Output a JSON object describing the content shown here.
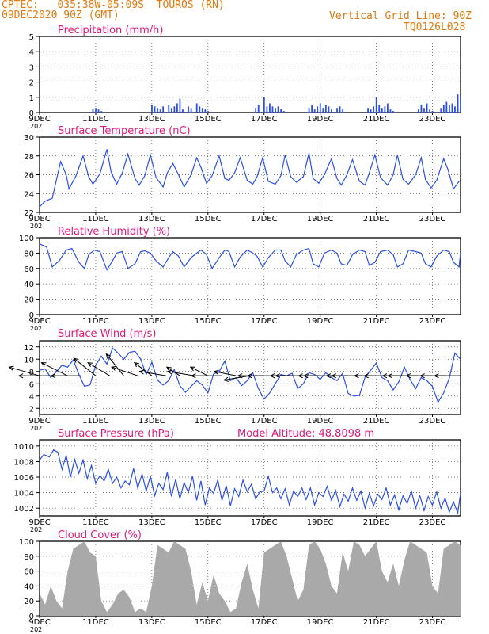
{
  "header": {
    "source": "CPTEC:   035:38W-05:09S  TOUROS (RN)",
    "date": "09DEC2020 90Z (GMT)",
    "grid_line": "Vertical Grid Line: 90Z",
    "model": "TQ0126L028"
  },
  "colors": {
    "header": "#e07a10",
    "title": "#e0197a",
    "line": "#2a4fe8",
    "cloud": "#a9a9a9",
    "arrow": "#000000"
  },
  "x_axis": {
    "tick_labels": [
      "9DEC",
      "11DEC",
      "13DEC",
      "15DEC",
      "17DEC",
      "19DEC",
      "21DEC",
      "23DEC"
    ],
    "year_fragment": "202"
  },
  "chart_data": [
    {
      "type": "bar",
      "title": "Precipitation (mm/h)",
      "ylim": [
        0,
        5
      ],
      "yticks": [
        "0",
        "1",
        "2",
        "3",
        "4",
        "5"
      ],
      "xlim_days": [
        9,
        24
      ],
      "grid": true,
      "x_days": [
        10.9,
        11.0,
        11.1,
        11.2,
        13.0,
        13.1,
        13.2,
        13.3,
        13.4,
        13.6,
        13.7,
        13.8,
        13.9,
        14.0,
        14.1,
        14.3,
        14.4,
        14.6,
        14.7,
        14.8,
        14.9,
        15.0,
        16.7,
        16.8,
        17.0,
        17.1,
        17.2,
        17.3,
        17.4,
        17.5,
        17.6,
        17.7,
        18.6,
        18.7,
        18.8,
        18.9,
        19.0,
        19.1,
        19.2,
        19.3,
        19.4,
        19.6,
        19.7,
        19.8,
        20.7,
        20.8,
        20.9,
        21.0,
        21.1,
        21.2,
        21.3,
        21.4,
        21.5,
        21.6,
        22.5,
        22.6,
        22.7,
        22.8,
        22.9,
        23.0,
        23.3,
        23.4,
        23.5,
        23.6,
        23.7,
        23.8,
        23.9,
        24.0
      ],
      "values": [
        0.2,
        0.3,
        0.2,
        0.1,
        0.5,
        0.4,
        0.3,
        0.2,
        0.4,
        0.5,
        0.3,
        0.4,
        0.6,
        0.9,
        0.2,
        0.4,
        0.3,
        0.6,
        0.4,
        0.3,
        0.2,
        0.1,
        0.3,
        0.5,
        1.0,
        0.4,
        0.6,
        0.4,
        0.3,
        0.4,
        0.2,
        0.1,
        0.3,
        0.5,
        0.2,
        0.4,
        0.6,
        0.3,
        0.5,
        0.4,
        0.2,
        0.3,
        0.4,
        0.2,
        0.3,
        0.2,
        0.4,
        1.0,
        0.5,
        0.3,
        0.4,
        0.6,
        0.2,
        0.1,
        0.2,
        0.5,
        0.3,
        0.6,
        0.2,
        0.1,
        0.3,
        0.5,
        0.7,
        0.5,
        0.6,
        0.4,
        1.2,
        0.9
      ]
    },
    {
      "type": "line",
      "title": "Surface Temperature (nC)",
      "ylim": [
        22,
        30
      ],
      "yticks": [
        "22",
        "24",
        "26",
        "28",
        "30"
      ],
      "xlim_days": [
        9,
        24
      ],
      "grid": true,
      "x_days": [
        9.0,
        9.2,
        9.45,
        9.75,
        9.95,
        10.05,
        10.3,
        10.55,
        10.75,
        10.9,
        11.15,
        11.4,
        11.55,
        11.75,
        11.95,
        12.15,
        12.4,
        12.55,
        12.75,
        12.95,
        13.15,
        13.4,
        13.55,
        13.75,
        13.95,
        14.15,
        14.4,
        14.6,
        14.75,
        14.95,
        15.15,
        15.4,
        15.6,
        15.75,
        15.95,
        16.15,
        16.4,
        16.6,
        16.75,
        16.95,
        17.15,
        17.4,
        17.6,
        17.75,
        17.95,
        18.15,
        18.4,
        18.6,
        18.75,
        18.95,
        19.15,
        19.4,
        19.6,
        19.75,
        19.95,
        20.15,
        20.4,
        20.6,
        20.75,
        20.95,
        21.15,
        21.4,
        21.6,
        21.75,
        21.95,
        22.15,
        22.4,
        22.6,
        22.75,
        22.95,
        23.15,
        23.4,
        23.55,
        23.75,
        23.95,
        24.0
      ],
      "values": [
        22.6,
        23.2,
        23.5,
        27.4,
        26.0,
        24.5,
        25.9,
        28.0,
        25.8,
        25.0,
        26.1,
        28.7,
        26.3,
        25.0,
        26.2,
        28.2,
        25.6,
        24.9,
        25.9,
        28.1,
        25.7,
        24.7,
        26.2,
        27.2,
        26.0,
        24.7,
        26.0,
        27.8,
        26.8,
        25.1,
        25.9,
        28.0,
        25.6,
        25.4,
        26.2,
        27.8,
        25.4,
        25.0,
        25.8,
        27.8,
        25.3,
        25.0,
        25.9,
        28.1,
        25.8,
        25.2,
        25.8,
        28.3,
        25.6,
        25.1,
        26.0,
        27.7,
        25.6,
        24.9,
        26.0,
        27.6,
        25.3,
        24.9,
        26.2,
        28.1,
        25.7,
        24.9,
        26.0,
        28.1,
        25.5,
        25.0,
        26.0,
        27.8,
        25.5,
        24.6,
        25.4,
        27.7,
        26.6,
        24.5,
        25.3,
        25.3
      ]
    },
    {
      "type": "line",
      "title": "Relative Humidity (%)",
      "ylim": [
        0,
        100
      ],
      "yticks": [
        "0",
        "20",
        "40",
        "60",
        "80",
        "100"
      ],
      "xlim_days": [
        9,
        24
      ],
      "grid": true,
      "x_days": [
        9.0,
        9.25,
        9.45,
        9.7,
        9.95,
        10.15,
        10.4,
        10.6,
        10.75,
        10.95,
        11.15,
        11.4,
        11.6,
        11.75,
        11.95,
        12.15,
        12.4,
        12.6,
        12.75,
        12.95,
        13.15,
        13.4,
        13.6,
        13.75,
        13.95,
        14.15,
        14.4,
        14.6,
        14.75,
        14.95,
        15.15,
        15.4,
        15.6,
        15.75,
        15.95,
        16.15,
        16.4,
        16.6,
        16.75,
        16.95,
        17.15,
        17.4,
        17.6,
        17.75,
        17.95,
        18.15,
        18.4,
        18.6,
        18.75,
        18.95,
        19.15,
        19.4,
        19.6,
        19.75,
        19.95,
        20.15,
        20.4,
        20.6,
        20.75,
        20.95,
        21.15,
        21.4,
        21.6,
        21.75,
        21.95,
        22.15,
        22.4,
        22.6,
        22.75,
        22.95,
        23.15,
        23.4,
        23.6,
        23.75,
        23.95,
        24.0
      ],
      "values": [
        92,
        88,
        62,
        70,
        84,
        86,
        68,
        60,
        78,
        84,
        82,
        58,
        70,
        80,
        82,
        60,
        66,
        82,
        83,
        80,
        70,
        62,
        74,
        82,
        76,
        62,
        74,
        80,
        84,
        78,
        60,
        74,
        84,
        82,
        62,
        75,
        84,
        80,
        76,
        62,
        74,
        84,
        84,
        70,
        62,
        78,
        84,
        86,
        66,
        62,
        80,
        84,
        80,
        66,
        64,
        78,
        84,
        82,
        64,
        68,
        82,
        84,
        78,
        62,
        66,
        84,
        82,
        80,
        66,
        62,
        76,
        84,
        82,
        68,
        62,
        80
      ]
    },
    {
      "type": "line",
      "title": "Surface Wind (m/s)",
      "ylim": [
        1,
        13
      ],
      "yticks": [
        "2",
        "4",
        "6",
        "8",
        "10",
        "12"
      ],
      "xlim_days": [
        9,
        24
      ],
      "grid": true,
      "x_days": [
        9.0,
        9.2,
        9.4,
        9.6,
        9.8,
        10.0,
        10.2,
        10.4,
        10.6,
        10.8,
        11.0,
        11.2,
        11.4,
        11.6,
        11.8,
        12.0,
        12.2,
        12.4,
        12.6,
        12.8,
        13.0,
        13.2,
        13.4,
        13.6,
        13.8,
        14.0,
        14.2,
        14.4,
        14.6,
        14.8,
        15.0,
        15.2,
        15.4,
        15.6,
        15.8,
        16.0,
        16.2,
        16.4,
        16.6,
        16.8,
        17.0,
        17.2,
        17.4,
        17.6,
        17.8,
        18.0,
        18.2,
        18.4,
        18.6,
        18.8,
        19.0,
        19.2,
        19.4,
        19.6,
        19.8,
        20.0,
        20.2,
        20.4,
        20.6,
        20.8,
        21.0,
        21.2,
        21.4,
        21.6,
        21.8,
        22.0,
        22.2,
        22.4,
        22.6,
        22.8,
        23.0,
        23.2,
        23.4,
        23.6,
        23.8,
        24.0
      ],
      "values": [
        8.2,
        8.4,
        7.0,
        8.0,
        9.0,
        8.7,
        9.9,
        7.5,
        5.6,
        5.8,
        9.0,
        10.5,
        9.2,
        11.8,
        11.0,
        10.0,
        11.1,
        11.3,
        10.0,
        7.5,
        9.5,
        6.6,
        5.8,
        6.5,
        8.3,
        5.7,
        4.6,
        5.6,
        6.5,
        5.8,
        4.5,
        7.6,
        8.0,
        9.7,
        6.5,
        7.0,
        5.7,
        6.5,
        7.8,
        5.2,
        3.5,
        4.5,
        6.0,
        7.5,
        7.3,
        7.7,
        5.2,
        6.0,
        7.8,
        7.5,
        6.7,
        7.8,
        7.0,
        6.5,
        7.7,
        4.4,
        4.0,
        4.1,
        7.1,
        8.2,
        9.4,
        7.0,
        6.5,
        5.0,
        6.3,
        8.7,
        6.7,
        5.2,
        7.0,
        6.5,
        5.6,
        3.0,
        4.5,
        6.9,
        11.0,
        10.0
      ],
      "vectors": {
        "x_days": [
          9.0,
          9.5,
          10.0,
          10.5,
          11.0,
          11.5,
          12.0,
          12.5,
          13.0,
          13.5,
          14.0,
          14.5,
          15.0,
          15.5,
          16.0,
          16.5,
          17.0,
          17.5,
          18.0,
          18.5,
          19.0,
          19.5,
          20.0,
          20.5,
          21.0,
          21.5,
          22.0,
          22.5,
          23.0,
          23.5,
          24.0
        ],
        "u_ms": [
          -7,
          -8,
          -6,
          -7,
          -5,
          -5,
          -4,
          -6,
          -4,
          -6,
          -3,
          -6,
          -4,
          -7,
          -5,
          -6,
          -6,
          -7,
          -5,
          -7,
          -5,
          -7,
          -5,
          -7,
          -5,
          -6,
          -5,
          -7,
          -6,
          -6,
          -6
        ],
        "v_ms": [
          2,
          0,
          3,
          0,
          4,
          3,
          5,
          2,
          3,
          1,
          2,
          1,
          2,
          0,
          1,
          -1,
          0,
          0,
          0,
          0,
          0,
          0,
          0,
          0,
          0,
          0,
          0,
          0,
          0,
          0,
          0
        ]
      }
    },
    {
      "type": "line",
      "title": "Surface Pressure (hPa)",
      "extra_label": "Model Altitude: 48.8098  m",
      "ylim": [
        1001,
        1010.8
      ],
      "yticks": [
        "1002",
        "1004",
        "1006",
        "1008",
        "1010"
      ],
      "xlim_days": [
        9,
        24
      ],
      "grid": true,
      "x_days": [
        9.0,
        9.15,
        9.35,
        9.5,
        9.65,
        9.8,
        9.95,
        10.1,
        10.25,
        10.4,
        10.55,
        10.7,
        10.85,
        11.0,
        11.15,
        11.3,
        11.45,
        11.6,
        11.75,
        11.9,
        12.05,
        12.2,
        12.35,
        12.5,
        12.65,
        12.8,
        12.95,
        13.1,
        13.25,
        13.4,
        13.55,
        13.7,
        13.85,
        14.0,
        14.15,
        14.3,
        14.45,
        14.6,
        14.75,
        14.9,
        15.05,
        15.2,
        15.35,
        15.5,
        15.65,
        15.8,
        15.95,
        16.1,
        16.25,
        16.4,
        16.55,
        16.7,
        16.85,
        17.0,
        17.15,
        17.3,
        17.45,
        17.6,
        17.75,
        17.9,
        18.05,
        18.2,
        18.35,
        18.5,
        18.65,
        18.8,
        18.95,
        19.1,
        19.25,
        19.4,
        19.55,
        19.7,
        19.85,
        20.0,
        20.15,
        20.3,
        20.45,
        20.6,
        20.75,
        20.9,
        21.05,
        21.2,
        21.35,
        21.5,
        21.65,
        21.8,
        21.95,
        22.1,
        22.25,
        22.4,
        22.55,
        22.7,
        22.85,
        23.0,
        23.15,
        23.3,
        23.45,
        23.6,
        23.75,
        23.9,
        24.0
      ],
      "values": [
        1008.2,
        1008.9,
        1008.6,
        1009.5,
        1009.2,
        1007.0,
        1008.8,
        1006.0,
        1008.3,
        1006.5,
        1008.2,
        1005.8,
        1007.5,
        1005.2,
        1006.2,
        1005.5,
        1007.0,
        1005.2,
        1006.0,
        1004.6,
        1005.5,
        1005.0,
        1007.1,
        1004.6,
        1006.4,
        1004.2,
        1006.1,
        1003.6,
        1005.2,
        1004.4,
        1006.6,
        1003.5,
        1005.7,
        1003.2,
        1005.3,
        1004.0,
        1006.1,
        1003.0,
        1005.5,
        1002.4,
        1004.6,
        1003.9,
        1005.6,
        1003.0,
        1004.9,
        1002.3,
        1004.5,
        1003.5,
        1005.6,
        1004.1,
        1005.1,
        1003.2,
        1004.1,
        1004.2,
        1006.1,
        1004.0,
        1004.6,
        1003.2,
        1004.5,
        1002.4,
        1004.2,
        1003.5,
        1004.6,
        1003.1,
        1004.6,
        1002.4,
        1004.0,
        1003.5,
        1004.8,
        1003.0,
        1004.3,
        1002.2,
        1003.8,
        1002.9,
        1004.6,
        1003.0,
        1004.2,
        1002.0,
        1003.9,
        1002.3,
        1003.8,
        1003.1,
        1004.6,
        1002.4,
        1003.7,
        1001.8,
        1003.6,
        1002.6,
        1004.2,
        1002.0,
        1003.6,
        1001.7,
        1003.5,
        1002.4,
        1004.1,
        1002.0,
        1003.3,
        1001.5,
        1002.8,
        1001.4,
        1003.9
      ]
    },
    {
      "type": "area",
      "title": "Cloud Cover (%)",
      "ylim": [
        0,
        100
      ],
      "yticks": [
        "0",
        "20",
        "40",
        "60",
        "80",
        "100"
      ],
      "xlim_days": [
        9,
        24
      ],
      "grid": true,
      "x_days": [
        9.0,
        9.2,
        9.4,
        9.6,
        9.8,
        10.0,
        10.2,
        10.4,
        10.6,
        10.8,
        11.0,
        11.2,
        11.4,
        11.6,
        11.8,
        12.0,
        12.2,
        12.4,
        12.6,
        12.8,
        13.0,
        13.2,
        13.4,
        13.6,
        13.8,
        14.0,
        14.2,
        14.4,
        14.6,
        14.8,
        15.0,
        15.2,
        15.4,
        15.6,
        15.8,
        16.0,
        16.2,
        16.4,
        16.6,
        16.8,
        17.0,
        17.2,
        17.4,
        17.6,
        17.8,
        18.0,
        18.2,
        18.4,
        18.6,
        18.8,
        19.0,
        19.2,
        19.4,
        19.6,
        19.8,
        20.0,
        20.2,
        20.4,
        20.6,
        20.8,
        21.0,
        21.2,
        21.4,
        21.6,
        21.8,
        22.0,
        22.2,
        22.4,
        22.6,
        22.8,
        23.0,
        23.2,
        23.4,
        23.6,
        23.8,
        24.0
      ],
      "values": [
        30,
        15,
        40,
        20,
        10,
        60,
        90,
        95,
        100,
        85,
        80,
        20,
        5,
        15,
        30,
        35,
        25,
        5,
        10,
        5,
        40,
        95,
        90,
        85,
        100,
        95,
        90,
        60,
        15,
        45,
        20,
        55,
        30,
        20,
        5,
        10,
        45,
        70,
        35,
        10,
        85,
        90,
        95,
        100,
        80,
        50,
        20,
        35,
        95,
        100,
        90,
        70,
        40,
        30,
        85,
        60,
        100,
        95,
        80,
        90,
        100,
        60,
        45,
        70,
        40,
        75,
        100,
        95,
        90,
        85,
        40,
        30,
        90,
        95,
        100,
        95
      ]
    }
  ]
}
